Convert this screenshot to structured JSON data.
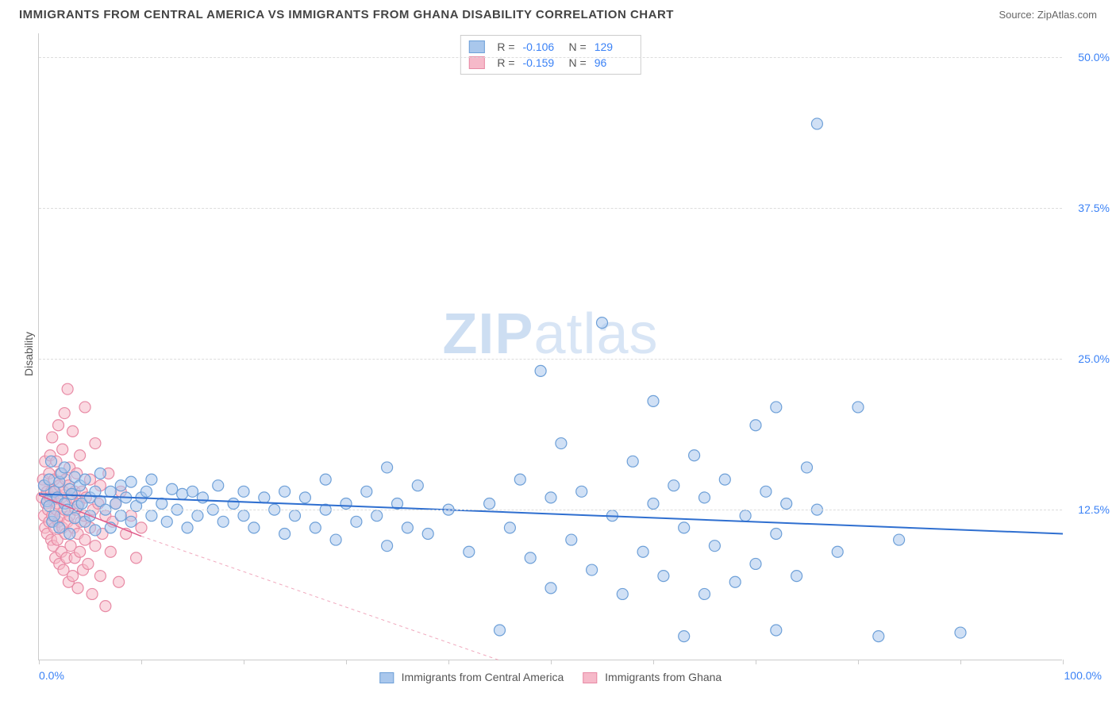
{
  "header": {
    "title": "IMMIGRANTS FROM CENTRAL AMERICA VS IMMIGRANTS FROM GHANA DISABILITY CORRELATION CHART",
    "source": "Source: ZipAtlas.com"
  },
  "chart": {
    "type": "scatter",
    "ylabel": "Disability",
    "xlim": [
      0,
      100
    ],
    "ylim": [
      0,
      52
    ],
    "xtick_positions": [
      0,
      10,
      20,
      30,
      40,
      50,
      60,
      70,
      80,
      90,
      100
    ],
    "yticks": [
      {
        "v": 12.5,
        "label": "12.5%"
      },
      {
        "v": 25.0,
        "label": "25.0%"
      },
      {
        "v": 37.5,
        "label": "37.5%"
      },
      {
        "v": 50.0,
        "label": "50.0%"
      }
    ],
    "x_axis_labels": {
      "left": "0.0%",
      "right": "100.0%"
    },
    "background_color": "#ffffff",
    "grid_color": "#dddddd",
    "axis_color": "#cccccc",
    "marker_radius": 7,
    "marker_stroke_width": 1.2,
    "watermark": {
      "text_zip": "ZIP",
      "text_atlas": "atlas"
    },
    "series": [
      {
        "id": "central_america",
        "label": "Immigrants from Central America",
        "fill": "#a9c7ec",
        "stroke": "#6ea0d8",
        "fill_opacity": 0.55,
        "R": "-0.106",
        "N": "129",
        "trend": {
          "x1": 0,
          "y1": 13.8,
          "x2": 100,
          "y2": 10.5,
          "color": "#2f6fd0",
          "width": 2,
          "dash": "none"
        },
        "points": [
          [
            0.5,
            14.5
          ],
          [
            0.8,
            13.2
          ],
          [
            1.0,
            15.0
          ],
          [
            1.0,
            12.8
          ],
          [
            1.2,
            16.5
          ],
          [
            1.3,
            11.5
          ],
          [
            1.5,
            14.0
          ],
          [
            1.5,
            12.0
          ],
          [
            1.8,
            13.5
          ],
          [
            2.0,
            14.8
          ],
          [
            2.0,
            11.0
          ],
          [
            2.2,
            15.5
          ],
          [
            2.5,
            13.0
          ],
          [
            2.5,
            16.0
          ],
          [
            2.8,
            12.5
          ],
          [
            3.0,
            14.2
          ],
          [
            3.0,
            10.5
          ],
          [
            3.2,
            13.8
          ],
          [
            3.5,
            15.2
          ],
          [
            3.5,
            11.8
          ],
          [
            3.8,
            12.8
          ],
          [
            4.0,
            14.5
          ],
          [
            4.2,
            13.0
          ],
          [
            4.5,
            15.0
          ],
          [
            4.5,
            11.5
          ],
          [
            5.0,
            13.5
          ],
          [
            5.0,
            12.0
          ],
          [
            5.5,
            14.0
          ],
          [
            5.5,
            10.8
          ],
          [
            6.0,
            13.2
          ],
          [
            6.0,
            15.5
          ],
          [
            6.5,
            12.5
          ],
          [
            7.0,
            14.0
          ],
          [
            7.0,
            11.0
          ],
          [
            7.5,
            13.0
          ],
          [
            8.0,
            14.5
          ],
          [
            8.0,
            12.0
          ],
          [
            8.5,
            13.5
          ],
          [
            9.0,
            11.5
          ],
          [
            9.0,
            14.8
          ],
          [
            9.5,
            12.8
          ],
          [
            10.0,
            13.5
          ],
          [
            10.5,
            14.0
          ],
          [
            11.0,
            12.0
          ],
          [
            11.0,
            15.0
          ],
          [
            12.0,
            13.0
          ],
          [
            12.5,
            11.5
          ],
          [
            13.0,
            14.2
          ],
          [
            13.5,
            12.5
          ],
          [
            14.0,
            13.8
          ],
          [
            14.5,
            11.0
          ],
          [
            15.0,
            14.0
          ],
          [
            15.5,
            12.0
          ],
          [
            16.0,
            13.5
          ],
          [
            17.0,
            12.5
          ],
          [
            17.5,
            14.5
          ],
          [
            18.0,
            11.5
          ],
          [
            19.0,
            13.0
          ],
          [
            20.0,
            12.0
          ],
          [
            20.0,
            14.0
          ],
          [
            21.0,
            11.0
          ],
          [
            22.0,
            13.5
          ],
          [
            23.0,
            12.5
          ],
          [
            24.0,
            10.5
          ],
          [
            24.0,
            14.0
          ],
          [
            25.0,
            12.0
          ],
          [
            26.0,
            13.5
          ],
          [
            27.0,
            11.0
          ],
          [
            28.0,
            12.5
          ],
          [
            28.0,
            15.0
          ],
          [
            29.0,
            10.0
          ],
          [
            30.0,
            13.0
          ],
          [
            31.0,
            11.5
          ],
          [
            32.0,
            14.0
          ],
          [
            33.0,
            12.0
          ],
          [
            34.0,
            9.5
          ],
          [
            34.0,
            16.0
          ],
          [
            35.0,
            13.0
          ],
          [
            36.0,
            11.0
          ],
          [
            37.0,
            14.5
          ],
          [
            38.0,
            10.5
          ],
          [
            40.0,
            12.5
          ],
          [
            42.0,
            9.0
          ],
          [
            44.0,
            13.0
          ],
          [
            45.0,
            2.5
          ],
          [
            46.0,
            11.0
          ],
          [
            47.0,
            15.0
          ],
          [
            48.0,
            8.5
          ],
          [
            49.0,
            24.0
          ],
          [
            50.0,
            13.5
          ],
          [
            50.0,
            6.0
          ],
          [
            51.0,
            18.0
          ],
          [
            52.0,
            10.0
          ],
          [
            53.0,
            14.0
          ],
          [
            54.0,
            7.5
          ],
          [
            55.0,
            28.0
          ],
          [
            56.0,
            12.0
          ],
          [
            57.0,
            5.5
          ],
          [
            58.0,
            16.5
          ],
          [
            59.0,
            9.0
          ],
          [
            60.0,
            13.0
          ],
          [
            60.0,
            21.5
          ],
          [
            61.0,
            7.0
          ],
          [
            62.0,
            14.5
          ],
          [
            63.0,
            2.0
          ],
          [
            63.0,
            11.0
          ],
          [
            64.0,
            17.0
          ],
          [
            65.0,
            5.5
          ],
          [
            65.0,
            13.5
          ],
          [
            66.0,
            9.5
          ],
          [
            67.0,
            15.0
          ],
          [
            68.0,
            6.5
          ],
          [
            69.0,
            12.0
          ],
          [
            70.0,
            19.5
          ],
          [
            70.0,
            8.0
          ],
          [
            71.0,
            14.0
          ],
          [
            72.0,
            10.5
          ],
          [
            72.0,
            21.0
          ],
          [
            72.0,
            2.5
          ],
          [
            73.0,
            13.0
          ],
          [
            74.0,
            7.0
          ],
          [
            75.0,
            16.0
          ],
          [
            76.0,
            12.5
          ],
          [
            76.0,
            44.5
          ],
          [
            78.0,
            9.0
          ],
          [
            80.0,
            21.0
          ],
          [
            82.0,
            2.0
          ],
          [
            84.0,
            10.0
          ],
          [
            90.0,
            2.3
          ]
        ]
      },
      {
        "id": "ghana",
        "label": "Immigrants from Ghana",
        "fill": "#f6b9c9",
        "stroke": "#e88aa5",
        "fill_opacity": 0.55,
        "R": "-0.159",
        "N": "96",
        "trend": {
          "x1": 0,
          "y1": 13.7,
          "x2": 10,
          "y2": 10.3,
          "color": "#e05a8a",
          "width": 1.5,
          "dash": "none"
        },
        "trend_ext": {
          "x1": 10,
          "y1": 10.3,
          "x2": 45,
          "y2": 0,
          "color": "#f0a8bd",
          "width": 1,
          "dash": "4,4"
        },
        "points": [
          [
            0.3,
            13.5
          ],
          [
            0.4,
            15.0
          ],
          [
            0.5,
            12.0
          ],
          [
            0.5,
            14.5
          ],
          [
            0.6,
            11.0
          ],
          [
            0.6,
            16.5
          ],
          [
            0.7,
            13.0
          ],
          [
            0.8,
            10.5
          ],
          [
            0.8,
            14.0
          ],
          [
            0.9,
            12.5
          ],
          [
            1.0,
            15.5
          ],
          [
            1.0,
            11.5
          ],
          [
            1.1,
            13.5
          ],
          [
            1.1,
            17.0
          ],
          [
            1.2,
            10.0
          ],
          [
            1.2,
            14.0
          ],
          [
            1.3,
            12.0
          ],
          [
            1.3,
            18.5
          ],
          [
            1.4,
            9.5
          ],
          [
            1.4,
            13.5
          ],
          [
            1.5,
            15.0
          ],
          [
            1.5,
            11.0
          ],
          [
            1.6,
            8.5
          ],
          [
            1.6,
            14.0
          ],
          [
            1.7,
            12.5
          ],
          [
            1.7,
            16.5
          ],
          [
            1.8,
            10.0
          ],
          [
            1.8,
            13.0
          ],
          [
            1.9,
            19.5
          ],
          [
            1.9,
            11.5
          ],
          [
            2.0,
            14.5
          ],
          [
            2.0,
            8.0
          ],
          [
            2.1,
            12.0
          ],
          [
            2.1,
            15.5
          ],
          [
            2.2,
            9.0
          ],
          [
            2.2,
            13.5
          ],
          [
            2.3,
            17.5
          ],
          [
            2.3,
            11.0
          ],
          [
            2.4,
            7.5
          ],
          [
            2.4,
            14.0
          ],
          [
            2.5,
            12.5
          ],
          [
            2.5,
            20.5
          ],
          [
            2.6,
            10.5
          ],
          [
            2.6,
            15.0
          ],
          [
            2.7,
            8.5
          ],
          [
            2.7,
            13.0
          ],
          [
            2.8,
            22.5
          ],
          [
            2.8,
            11.5
          ],
          [
            2.9,
            6.5
          ],
          [
            2.9,
            14.5
          ],
          [
            3.0,
            12.0
          ],
          [
            3.0,
            16.0
          ],
          [
            3.1,
            9.5
          ],
          [
            3.2,
            13.5
          ],
          [
            3.3,
            7.0
          ],
          [
            3.3,
            19.0
          ],
          [
            3.4,
            11.0
          ],
          [
            3.5,
            14.0
          ],
          [
            3.5,
            8.5
          ],
          [
            3.6,
            12.5
          ],
          [
            3.7,
            15.5
          ],
          [
            3.8,
            6.0
          ],
          [
            3.8,
            10.5
          ],
          [
            3.9,
            13.0
          ],
          [
            4.0,
            17.0
          ],
          [
            4.0,
            9.0
          ],
          [
            4.1,
            11.5
          ],
          [
            4.2,
            14.0
          ],
          [
            4.3,
            7.5
          ],
          [
            4.4,
            12.0
          ],
          [
            4.5,
            21.0
          ],
          [
            4.5,
            10.0
          ],
          [
            4.6,
            13.5
          ],
          [
            4.8,
            8.0
          ],
          [
            5.0,
            15.0
          ],
          [
            5.0,
            11.0
          ],
          [
            5.2,
            5.5
          ],
          [
            5.3,
            12.5
          ],
          [
            5.5,
            9.5
          ],
          [
            5.5,
            18.0
          ],
          [
            5.8,
            13.0
          ],
          [
            6.0,
            7.0
          ],
          [
            6.0,
            14.5
          ],
          [
            6.2,
            10.5
          ],
          [
            6.5,
            12.0
          ],
          [
            6.5,
            4.5
          ],
          [
            6.8,
            15.5
          ],
          [
            7.0,
            9.0
          ],
          [
            7.2,
            11.5
          ],
          [
            7.5,
            13.0
          ],
          [
            7.8,
            6.5
          ],
          [
            8.0,
            14.0
          ],
          [
            8.5,
            10.5
          ],
          [
            9.0,
            12.0
          ],
          [
            9.5,
            8.5
          ],
          [
            10.0,
            11.0
          ]
        ]
      }
    ],
    "bottom_legend": [
      {
        "swatch_fill": "#a9c7ec",
        "swatch_stroke": "#6ea0d8",
        "label_ref": "series.0.label"
      },
      {
        "swatch_fill": "#f6b9c9",
        "swatch_stroke": "#e88aa5",
        "label_ref": "series.1.label"
      }
    ]
  }
}
